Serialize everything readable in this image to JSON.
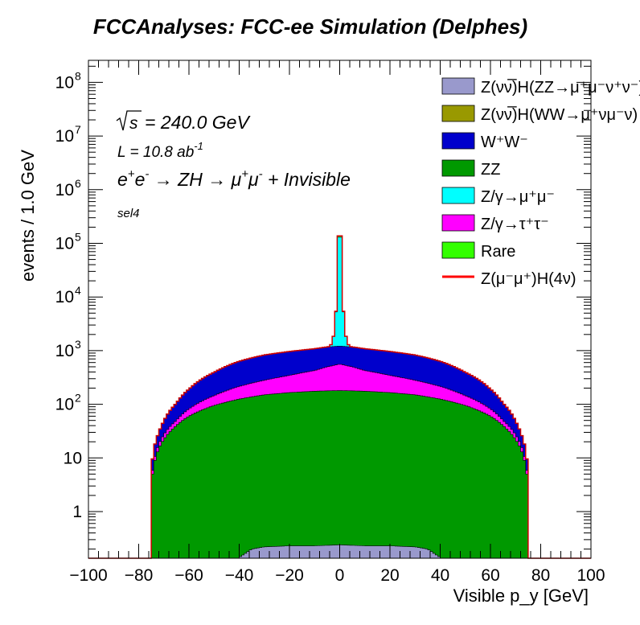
{
  "chart_data": {
    "type": "area",
    "title": "FCCAnalyses: FCC-ee Simulation (Delphes)",
    "xlabel": "Visible p_y [GeV]",
    "ylabel": "events / 1.0 GeV",
    "xlim": [
      -100,
      100
    ],
    "ylim": [
      0.13,
      200000000.0
    ],
    "yscale": "log",
    "x_ticks": [
      "−100",
      "−80",
      "−60",
      "−40",
      "−20",
      "0",
      "20",
      "40",
      "60",
      "80",
      "100"
    ],
    "y_ticks": [
      "1",
      "10",
      "10^2",
      "10^3",
      "10^4",
      "10^5",
      "10^6",
      "10^7",
      "10^8"
    ],
    "annotations": {
      "sqrt_s": "= 240.0 GeV",
      "lumi": "L = 10.8 ab",
      "lumi_exp": "-1",
      "process_parts": [
        "e",
        "+",
        "e",
        "-",
        " → ZH → μ",
        "+",
        "μ",
        "-",
        " + Invisible"
      ],
      "selection": "sel4"
    },
    "legend_position": "top-right",
    "stacked": true,
    "legend": [
      {
        "label": "Z(νν̅)H(ZZ→μ⁺μ⁻ν⁺ν⁻)",
        "color": "#9999cc",
        "style": "fill"
      },
      {
        "label": "Z(νν̅)H(WW→μ⁺νμ⁻ν)",
        "color": "#999900",
        "style": "fill"
      },
      {
        "label": "W⁺W⁻",
        "color": "#0000cc",
        "style": "fill"
      },
      {
        "label": "ZZ",
        "color": "#009900",
        "style": "fill"
      },
      {
        "label": "Z/γ→μ⁺μ⁻",
        "color": "#00ffff",
        "style": "fill"
      },
      {
        "label": "Z/γ→τ⁺τ⁻",
        "color": "#ff00ff",
        "style": "fill"
      },
      {
        "label": "Rare",
        "color": "#33ff00",
        "style": "fill"
      },
      {
        "label": "Z(μ⁻μ⁺)H(4ν)",
        "color": "#ff0000",
        "style": "line"
      }
    ],
    "bins": {
      "x_min": -75,
      "x_max": 75,
      "width": 1.0
    },
    "series": [
      {
        "name": "Z(νν̅)H(ZZ→μ⁺μ⁻ν⁺ν⁻)",
        "color": "#9999cc",
        "x": [
          -41,
          -38,
          -35,
          -30,
          -20,
          -10,
          0,
          10,
          20,
          30,
          35,
          38,
          41
        ],
        "y": [
          0.13,
          0.16,
          0.2,
          0.22,
          0.23,
          0.23,
          0.24,
          0.23,
          0.23,
          0.22,
          0.2,
          0.16,
          0.13
        ]
      },
      {
        "name": "ZZ",
        "color": "#009900",
        "x": [
          -75,
          -74,
          -72,
          -70,
          -65,
          -60,
          -50,
          -40,
          -30,
          -20,
          -10,
          -5,
          0,
          5,
          10,
          20,
          30,
          40,
          50,
          60,
          65,
          70,
          72,
          74,
          75
        ],
        "y": [
          3,
          7,
          15,
          22,
          40,
          60,
          95,
          125,
          150,
          165,
          175,
          178,
          180,
          178,
          175,
          165,
          150,
          125,
          95,
          60,
          40,
          22,
          15,
          7,
          3
        ]
      },
      {
        "name": "Z/γ→τ⁺τ⁻",
        "color": "#ff00ff",
        "x": [
          -75,
          -74,
          -72,
          -70,
          -65,
          -60,
          -50,
          -40,
          -30,
          -20,
          -10,
          -5,
          0,
          5,
          10,
          20,
          30,
          40,
          50,
          60,
          65,
          70,
          72,
          74,
          75
        ],
        "y": [
          0.5,
          1.2,
          3,
          5,
          10,
          22,
          50,
          90,
          130,
          180,
          250,
          320,
          380,
          320,
          250,
          180,
          130,
          90,
          50,
          22,
          10,
          5,
          3,
          1.2,
          0.5
        ]
      },
      {
        "name": "W⁺W⁻",
        "color": "#0000cc",
        "x": [
          -75,
          -74,
          -72,
          -70,
          -65,
          -60,
          -50,
          -40,
          -30,
          -20,
          -10,
          -5,
          0,
          5,
          10,
          20,
          30,
          40,
          50,
          60,
          65,
          70,
          72,
          74,
          75
        ],
        "y": [
          1.5,
          6,
          12,
          22,
          55,
          110,
          250,
          420,
          550,
          620,
          660,
          670,
          660,
          670,
          660,
          620,
          550,
          420,
          250,
          110,
          55,
          22,
          12,
          6,
          1.5
        ]
      },
      {
        "name": "Z/γ→μ⁺μ⁻",
        "color": "#00ffff",
        "x": [
          -10,
          -6,
          -4,
          -3,
          -2,
          -1,
          0,
          1,
          2,
          3,
          4,
          6,
          10
        ],
        "y": [
          0,
          5,
          10,
          200,
          1100,
          7000,
          250000,
          7000,
          1100,
          200,
          10,
          5,
          0
        ]
      },
      {
        "name": "Rare",
        "color": "#33ff00",
        "x": [
          -2,
          -1,
          0,
          1,
          2
        ],
        "y": [
          0,
          300,
          15000,
          300,
          0
        ]
      }
    ]
  }
}
